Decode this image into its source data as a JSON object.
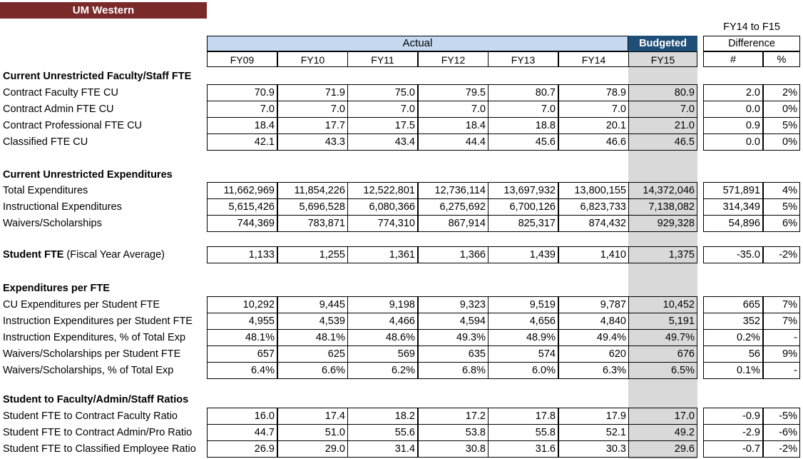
{
  "title": "UM Western",
  "header": {
    "diff_title": "FY14 to F15",
    "actual": "Actual",
    "budgeted": "Budgeted",
    "difference": "Difference",
    "years": [
      "FY09",
      "FY10",
      "FY11",
      "FY12",
      "FY13",
      "FY14",
      "FY15"
    ],
    "hash": "#",
    "pct": "%"
  },
  "sections": [
    {
      "title": "Current Unrestricted Faculty/Staff FTE",
      "rows": [
        {
          "label": "Contract Faculty FTE CU",
          "values": [
            "70.9",
            "71.9",
            "75.0",
            "79.5",
            "80.7",
            "78.9",
            "80.9"
          ],
          "diff": "2.0",
          "pct": "2%"
        },
        {
          "label": "Contract Admin FTE CU",
          "values": [
            "7.0",
            "7.0",
            "7.0",
            "7.0",
            "7.0",
            "7.0",
            "7.0"
          ],
          "diff": "0.0",
          "pct": "0%"
        },
        {
          "label": "Contract Professional FTE CU",
          "values": [
            "18.4",
            "17.7",
            "17.5",
            "18.4",
            "18.8",
            "20.1",
            "21.0"
          ],
          "diff": "0.9",
          "pct": "5%"
        },
        {
          "label": "Classified FTE CU",
          "values": [
            "42.1",
            "43.3",
            "43.4",
            "44.4",
            "45.6",
            "46.6",
            "46.5"
          ],
          "diff": "0.0",
          "pct": "0%"
        }
      ]
    },
    {
      "title": "Current Unrestricted Expenditures",
      "rows": [
        {
          "label": "Total Expenditures",
          "values": [
            "11,662,969",
            "11,854,226",
            "12,522,801",
            "12,736,114",
            "13,697,932",
            "13,800,155",
            "14,372,046"
          ],
          "diff": "571,891",
          "pct": "4%"
        },
        {
          "label": "Instructional Expenditures",
          "values": [
            "5,615,426",
            "5,696,528",
            "6,080,366",
            "6,275,692",
            "6,700,126",
            "6,823,733",
            "7,138,082"
          ],
          "diff": "314,349",
          "pct": "5%"
        },
        {
          "label": "Waivers/Scholarships",
          "values": [
            "744,369",
            "783,871",
            "774,310",
            "867,914",
            "825,317",
            "874,432",
            "929,328"
          ],
          "diff": "54,896",
          "pct": "6%"
        }
      ]
    },
    {
      "title": "",
      "rows": [
        {
          "label": "Student FTE",
          "label_suffix": " (Fiscal Year Average)",
          "values": [
            "1,133",
            "1,255",
            "1,361",
            "1,366",
            "1,439",
            "1,410",
            "1,375"
          ],
          "diff": "-35.0",
          "pct": "-2%"
        }
      ]
    },
    {
      "title": "Expenditures per FTE",
      "rows": [
        {
          "label": "CU Expenditures per Student FTE",
          "values": [
            "10,292",
            "9,445",
            "9,198",
            "9,323",
            "9,519",
            "9,787",
            "10,452"
          ],
          "diff": "665",
          "pct": "7%"
        },
        {
          "label": "Instruction Expenditures per Student FTE",
          "values": [
            "4,955",
            "4,539",
            "4,466",
            "4,594",
            "4,656",
            "4,840",
            "5,191"
          ],
          "diff": "352",
          "pct": "7%"
        },
        {
          "label": "Instruction Expenditures, % of Total Exp",
          "values": [
            "48.1%",
            "48.1%",
            "48.6%",
            "49.3%",
            "48.9%",
            "49.4%",
            "49.7%"
          ],
          "diff": "0.2%",
          "pct": "-"
        },
        {
          "label": "Waivers/Scholarships per Student FTE",
          "values": [
            "657",
            "625",
            "569",
            "635",
            "574",
            "620",
            "676"
          ],
          "diff": "56",
          "pct": "9%"
        },
        {
          "label": "Waivers/Scholarships, % of Total Exp",
          "values": [
            "6.4%",
            "6.6%",
            "6.2%",
            "6.8%",
            "6.0%",
            "6.3%",
            "6.5%"
          ],
          "diff": "0.1%",
          "pct": "-"
        }
      ]
    },
    {
      "title": "Student to Faculty/Admin/Staff Ratios",
      "rows": [
        {
          "label": "Student FTE to Contract Faculty Ratio",
          "values": [
            "16.0",
            "17.4",
            "18.2",
            "17.2",
            "17.8",
            "17.9",
            "17.0"
          ],
          "diff": "-0.9",
          "pct": "-5%"
        },
        {
          "label": "Student FTE to Contract Admin/Pro Ratio",
          "values": [
            "44.7",
            "51.0",
            "55.6",
            "53.8",
            "55.8",
            "52.1",
            "49.2"
          ],
          "diff": "-2.9",
          "pct": "-6%"
        },
        {
          "label": "Student FTE to Classified Employee Ratio",
          "values": [
            "26.9",
            "29.0",
            "31.4",
            "30.8",
            "31.6",
            "30.3",
            "29.6"
          ],
          "diff": "-0.7",
          "pct": "-2%"
        }
      ]
    }
  ]
}
